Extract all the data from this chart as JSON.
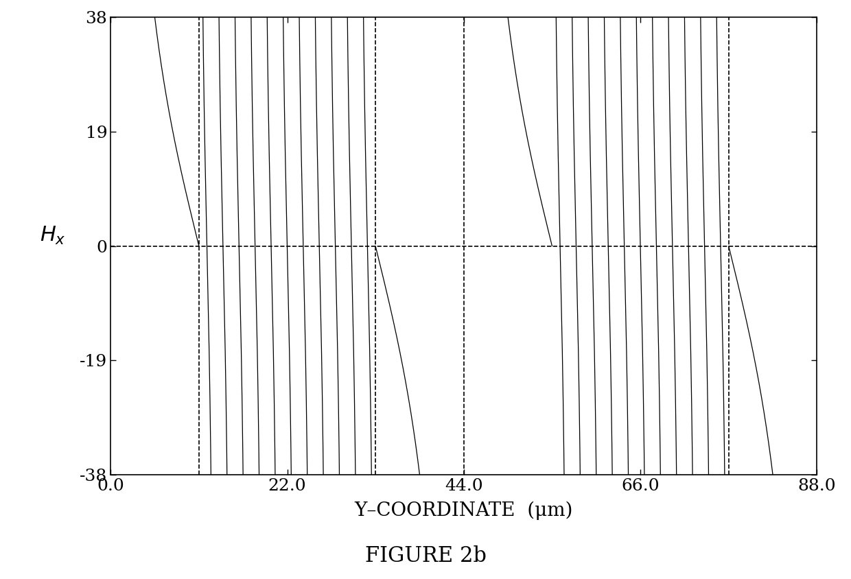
{
  "ymin": 0.0,
  "ymax": 88.0,
  "hx_min": -38,
  "hx_max": 38,
  "yticks": [
    38,
    19,
    0,
    -19,
    -38
  ],
  "xticks": [
    0.0,
    22.0,
    44.0,
    66.0,
    88.0
  ],
  "xlabel": "Y–COORDINATE  (μm)",
  "figure_label": "FIGURE 2b",
  "dashed_verticals": [
    11.0,
    33.0,
    44.0,
    77.0
  ],
  "line_color": "#000000",
  "background": "#ffffff",
  "label_fontsize": 20,
  "tick_fontsize": 18,
  "fig_label_fontsize": 22,
  "amplitude": 38.0,
  "T_slow": 44.0,
  "smooth_end1": 11.0,
  "osc_start1": 11.0,
  "osc_end1": 33.0,
  "swing_start1": 33.0,
  "swing_end1": 44.0,
  "fast_period": 2.0,
  "n_points": 500000
}
